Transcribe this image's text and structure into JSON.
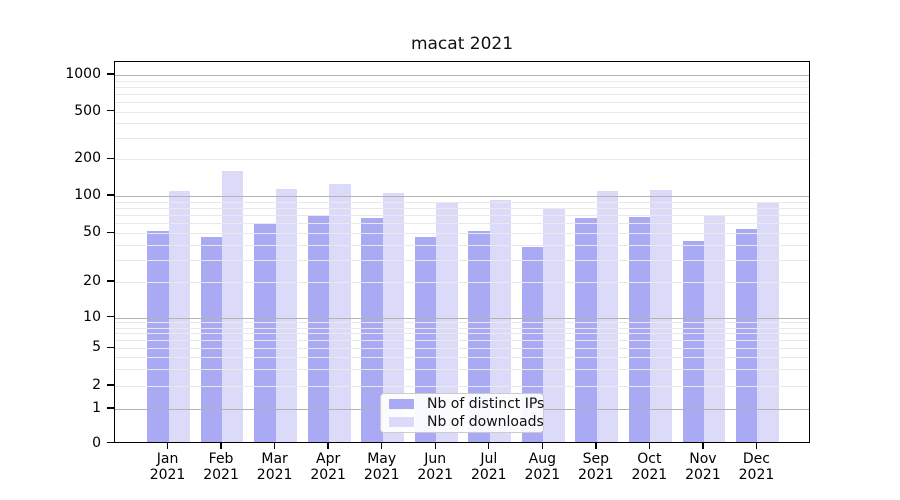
{
  "chart_data": {
    "type": "bar",
    "title": "macat 2021",
    "categories": [
      "Jan",
      "Feb",
      "Mar",
      "Apr",
      "May",
      "Jun",
      "Jul",
      "Aug",
      "Sep",
      "Oct",
      "Nov",
      "Dec"
    ],
    "category_year": "2021",
    "series": [
      {
        "name": "Nb of distinct IPs",
        "color": "#a9a9f4",
        "values": [
          52,
          47,
          60,
          70,
          66,
          47,
          52,
          39,
          66,
          68,
          43,
          54
        ]
      },
      {
        "name": "Nb of downloads",
        "color": "#dbdbf9",
        "values": [
          110,
          160,
          114,
          126,
          105,
          90,
          93,
          80,
          110,
          112,
          70,
          87
        ]
      }
    ],
    "y_axis": {
      "scale": "log-like",
      "ticks": [
        1000,
        500,
        200,
        100,
        50,
        20,
        10,
        5,
        2,
        1,
        0
      ],
      "major_gridlines": [
        1,
        10,
        100,
        1000
      ],
      "range": [
        0,
        1000
      ]
    },
    "x_axis": {
      "tick_style": "two-line month + year"
    },
    "legend_position": "lower center inside plot",
    "grid": "both",
    "colors": {
      "major_grid": "#b2b2b2",
      "minor_grid": "#e9e9e9",
      "axis": "#000000"
    }
  }
}
